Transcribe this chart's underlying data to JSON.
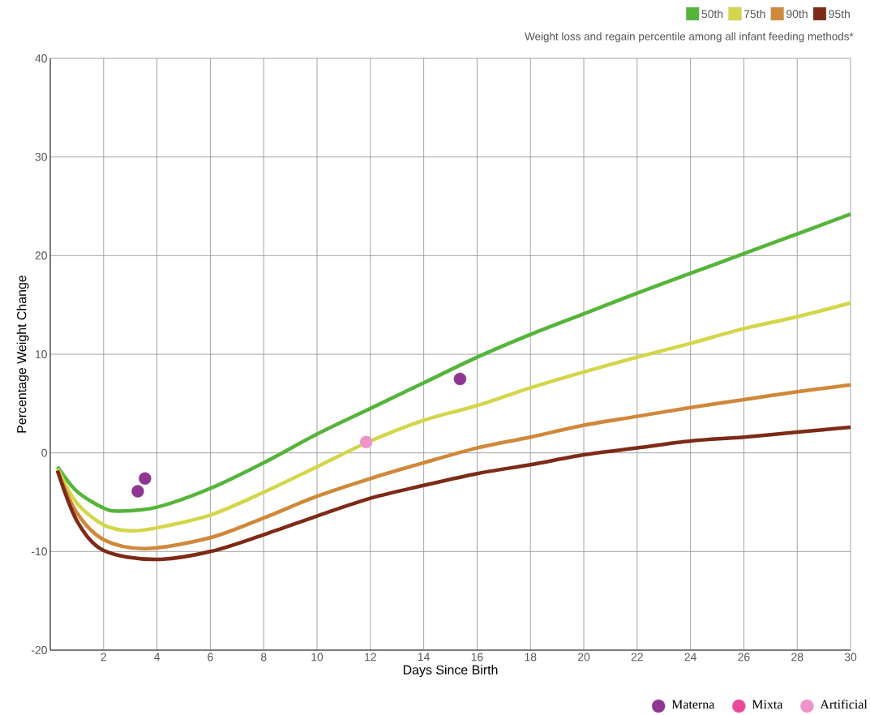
{
  "chart_data": {
    "type": "line",
    "xlabel": "Days Since Birth",
    "ylabel": "Percentage Weight Change",
    "annotations": [
      "Weight loss and regain percentile among all infant feeding methods*"
    ],
    "xlim": [
      0,
      30
    ],
    "ylim": [
      -20,
      40
    ],
    "xticks": [
      2,
      4,
      6,
      8,
      10,
      12,
      14,
      16,
      18,
      20,
      22,
      24,
      26,
      28,
      30
    ],
    "yticks": [
      -20,
      -10,
      0,
      10,
      20,
      30,
      40
    ],
    "grid": true,
    "legend": "right",
    "series": [
      {
        "name": "50th",
        "color": "#55b53a",
        "x": [
          0.27,
          1,
          2,
          2.6,
          4,
          6,
          8,
          10,
          12,
          14,
          16,
          18,
          20,
          22,
          24,
          26,
          28,
          30
        ],
        "values": [
          -1.4,
          -3.9,
          -5.6,
          -5.9,
          -5.5,
          -3.6,
          -1.0,
          1.9,
          4.5,
          7.1,
          9.7,
          12.0,
          14.1,
          16.2,
          18.2,
          20.2,
          22.2,
          24.2
        ]
      },
      {
        "name": "75th",
        "color": "#d4d64a",
        "x": [
          0.27,
          1,
          2,
          3,
          4,
          6,
          8,
          10,
          12,
          14,
          16,
          18,
          20,
          22,
          24,
          26,
          28,
          30
        ],
        "values": [
          -1.6,
          -5.1,
          -7.3,
          -7.9,
          -7.6,
          -6.3,
          -4.0,
          -1.4,
          1.2,
          3.3,
          4.8,
          6.6,
          8.2,
          9.7,
          11.1,
          12.6,
          13.8,
          15.2
        ]
      },
      {
        "name": "90th",
        "color": "#d0883a",
        "x": [
          0.27,
          1,
          2,
          3.6,
          6,
          8,
          10,
          12,
          14,
          16,
          18,
          20,
          22,
          24,
          26,
          28,
          30
        ],
        "values": [
          -1.8,
          -6.1,
          -8.8,
          -9.7,
          -8.6,
          -6.6,
          -4.4,
          -2.6,
          -1.0,
          0.5,
          1.6,
          2.8,
          3.7,
          4.6,
          5.4,
          6.2,
          6.9
        ]
      },
      {
        "name": "95th",
        "color": "#7d2a17",
        "x": [
          0.27,
          1,
          2,
          3.9,
          6,
          8,
          10,
          12,
          14,
          16,
          18,
          20,
          22,
          24,
          26,
          28,
          30
        ],
        "values": [
          -1.8,
          -6.9,
          -9.9,
          -10.8,
          -10.0,
          -8.3,
          -6.4,
          -4.6,
          -3.3,
          -2.1,
          -1.2,
          -0.2,
          0.5,
          1.2,
          1.6,
          2.1,
          2.6
        ]
      },
      {
        "name": "Materna",
        "type": "scatter",
        "marker": "circle",
        "color": "#8f3592",
        "x": [
          3.28,
          3.55,
          15.36
        ],
        "values": [
          -3.9,
          -2.6,
          7.5
        ]
      },
      {
        "name": "Mixta",
        "type": "scatter",
        "marker": "circle",
        "color": "#e8499b"
      },
      {
        "name": "Artificial",
        "type": "scatter",
        "marker": "circle",
        "color": "#ef93c9",
        "x": [
          11.84
        ],
        "values": [
          1.1
        ]
      }
    ]
  }
}
